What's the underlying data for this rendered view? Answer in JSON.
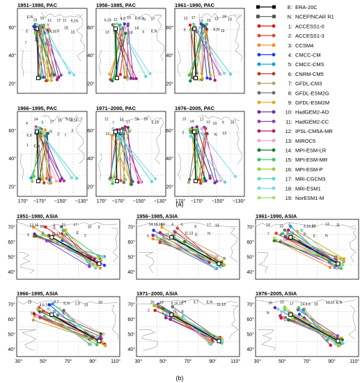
{
  "panel_a": {
    "caption": "(a)",
    "subplots": [
      {
        "title": "1951–1980, PAC",
        "y_labels": [
          "40°",
          "60°",
          "20°"
        ],
        "x_labels": []
      },
      {
        "title": "1956–1985, PAC",
        "y_labels": [
          "40°",
          "60°",
          "20°"
        ],
        "x_labels": []
      },
      {
        "title": "1961–1990, PAC",
        "y_labels": [
          "40°",
          "60°",
          "20°"
        ],
        "x_labels": []
      },
      {
        "title": "1966–1995, PAC",
        "y_labels": [
          "40°",
          "60°",
          "20°"
        ],
        "x_labels": [
          "170°",
          "−170°",
          "−150°",
          "−130°"
        ]
      },
      {
        "title": "1971–2000, PAC",
        "y_labels": [
          "40°",
          "60°",
          "20°"
        ],
        "x_labels": [
          "170°",
          "−170°",
          "−150°",
          "−130°"
        ]
      },
      {
        "title": "1976–2005, PAC",
        "y_labels": [
          "40°",
          "60°",
          "20°"
        ],
        "x_labels": [
          "170°",
          "−170°",
          "−150°",
          "−130°"
        ]
      }
    ],
    "annotations": [
      [
        "E,N",
        "19",
        "15",
        "12",
        "17",
        "11",
        "6,16,",
        "E",
        "10",
        "3",
        "14,16",
        "9",
        "18",
        "13",
        "7",
        "2",
        "5,6"
      ],
      [
        "6,16",
        "12",
        "4,3",
        "15",
        "E,6,9",
        "N",
        "17",
        "13",
        "10",
        "7",
        "18",
        "14",
        "5",
        "E,N"
      ],
      [
        "12",
        "17",
        "14",
        "15",
        "13",
        "18",
        "10",
        "9",
        "11",
        "3",
        "7",
        "E,N",
        "19"
      ],
      [
        "4",
        "14",
        "5",
        "17",
        "15",
        "9,10",
        "8,16",
        "6,9",
        "9,19",
        "E",
        "N",
        "2",
        "7",
        "3",
        "1",
        "E,N",
        "13"
      ],
      [
        "12",
        "7",
        "15",
        "17",
        "14",
        "18",
        "6,19",
        "13",
        "5,1",
        "E,N",
        "10"
      ],
      [
        "15",
        "14",
        "17",
        "12",
        "10",
        "9",
        "16",
        "2",
        "5",
        "8",
        "E",
        "N",
        "13"
      ]
    ]
  },
  "panel_b": {
    "caption": "(b)",
    "subplots": [
      {
        "title": "1951–1980, ASIA",
        "y_labels": [
          "70°",
          "60°",
          "50°",
          "40°"
        ],
        "x_labels": []
      },
      {
        "title": "1956–1985, ASIA",
        "y_labels": [
          "70°",
          "60°",
          "50°",
          "40°"
        ],
        "x_labels": []
      },
      {
        "title": "1961–1990, ASIA",
        "y_labels": [
          "70°",
          "60°",
          "50°",
          "40°"
        ],
        "x_labels": []
      },
      {
        "title": "1966–1995, ASIA",
        "y_labels": [
          "70°",
          "60°",
          "50°",
          "40°"
        ],
        "x_labels": [
          "30°",
          "50°",
          "70°",
          "90°",
          "110°"
        ]
      },
      {
        "title": "1971–2000, ASIA",
        "y_labels": [
          "70°",
          "60°",
          "50°",
          "40°"
        ],
        "x_labels": [
          "30°",
          "50°",
          "70°",
          "90°",
          "110°"
        ]
      },
      {
        "title": "1976–2005, ASIA",
        "y_labels": [
          "70°",
          "60°",
          "50°",
          "40°"
        ],
        "x_labels": [
          "30°",
          "50°",
          "70°",
          "90°",
          "110°"
        ]
      }
    ],
    "annotations": [
      [
        "12,16",
        "18",
        "9",
        "15",
        "17",
        "10",
        "3",
        "5",
        "8",
        "11,13",
        "N",
        "E",
        "2"
      ],
      [
        "14,15,16",
        "19",
        "4",
        "5",
        "8",
        "17",
        "13",
        "6",
        "N,10",
        "3",
        "11,13",
        "E",
        "N"
      ],
      [
        "14",
        "15",
        "6",
        "3,14,16",
        "17",
        "13",
        "11",
        "7",
        "4",
        "2",
        "9",
        "E",
        "N"
      ],
      [
        "15",
        "4,6,16",
        "3,7",
        "E,N",
        "2,9",
        "13",
        "18",
        "19",
        "17",
        "N",
        "E"
      ],
      [
        "16",
        "10",
        "9,15,16",
        "14",
        "3,7",
        "E,N",
        "11,13",
        "2",
        "5",
        "N",
        "E"
      ],
      [
        "16",
        "15",
        "17",
        "14,4,6",
        "19",
        "10,11",
        "E,N",
        "N",
        "2"
      ]
    ]
  },
  "legend": {
    "entries": [
      {
        "key": "E:",
        "name": "ERA-20C",
        "color": "#000000",
        "marker": "square"
      },
      {
        "key": "N:",
        "name": "NCEP/NCAR R1",
        "color": "#555555",
        "marker": "square"
      },
      {
        "key": "1:",
        "name": "ACCESS1-0",
        "color": "#e31a1c"
      },
      {
        "key": "2:",
        "name": "ACCESS1-3",
        "color": "#e8402a"
      },
      {
        "key": "3:",
        "name": "CCSM4",
        "color": "#f28c28"
      },
      {
        "key": "4:",
        "name": "CMCC-CM",
        "color": "#1f3cff"
      },
      {
        "key": "5:",
        "name": "CMCC-CMS",
        "color": "#00a0e0"
      },
      {
        "key": "6:",
        "name": "CNRM-CM5",
        "color": "#c0392b"
      },
      {
        "key": "7:",
        "name": "GFDL-CM3",
        "color": "#b5a06a"
      },
      {
        "key": "8:",
        "name": "GFDL-ESM2G",
        "color": "#6d6d6d"
      },
      {
        "key": "9:",
        "name": "GFDL-ESM2M",
        "color": "#e6a817"
      },
      {
        "key": "10:",
        "name": "HadGEM2-AO",
        "color": "#6a2c9e"
      },
      {
        "key": "11:",
        "name": "HadGEM2-CC",
        "color": "#8e3fbf"
      },
      {
        "key": "12:",
        "name": "IPSL-CM5A-MR",
        "color": "#c2185b"
      },
      {
        "key": "13:",
        "name": "MIROC5",
        "color": "#f7a1d0"
      },
      {
        "key": "14:",
        "name": "MPI-ESM-LR",
        "color": "#1b7a2e"
      },
      {
        "key": "15:",
        "name": "MPI-ESM-MR",
        "color": "#34c759"
      },
      {
        "key": "16:",
        "name": "MPI-ESM-P",
        "color": "#9acd32"
      },
      {
        "key": "17:",
        "name": "MRI-CGCM3",
        "color": "#5bd7c9"
      },
      {
        "key": "18:",
        "name": "MRI-ESM1",
        "color": "#7fd6f2"
      },
      {
        "key": "19:",
        "name": "NorESM1-M",
        "color": "#a8e06b"
      }
    ]
  }
}
